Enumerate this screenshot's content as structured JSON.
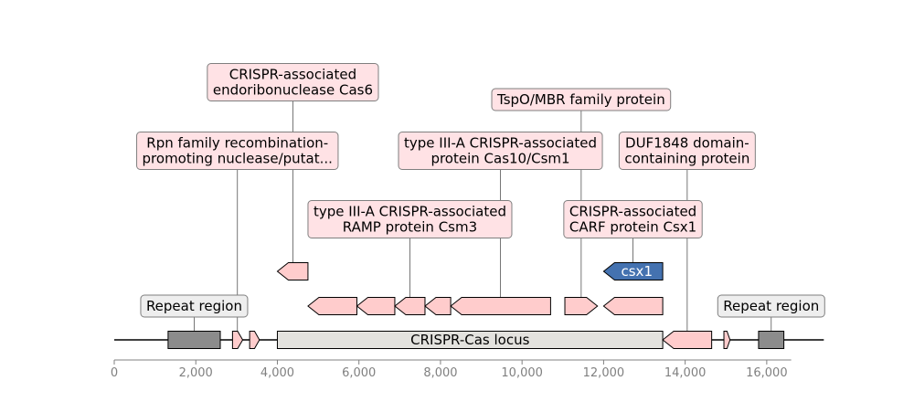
{
  "axis": {
    "ticks": [
      {
        "value": 0,
        "label": "0"
      },
      {
        "value": 2000,
        "label": "2,000"
      },
      {
        "value": 4000,
        "label": "4,000"
      },
      {
        "value": 6000,
        "label": "6,000"
      },
      {
        "value": 8000,
        "label": "8,000"
      },
      {
        "value": 10000,
        "label": "10,000"
      },
      {
        "value": 12000,
        "label": "12,000"
      },
      {
        "value": 14000,
        "label": "14,000"
      },
      {
        "value": 16000,
        "label": "16,000"
      }
    ],
    "xlim": [
      0,
      17400
    ]
  },
  "colors": {
    "repeat": "#8c8c8c",
    "locus": "#e3e2de",
    "gene": "#ffcccc",
    "csx1": "#4472b0",
    "label_pink": "#ffe2e5",
    "label_grey": "#eeeeee",
    "border": "#7f7f7f"
  },
  "features": [
    {
      "id": "repeat-region-left",
      "kind": "repeat",
      "start": 1320,
      "end": 2600,
      "track": 0
    },
    {
      "id": "gene-small-1",
      "kind": "gene",
      "start": 2900,
      "end": 3150,
      "strand": 1,
      "track": 0
    },
    {
      "id": "gene-small-2",
      "kind": "gene",
      "start": 3320,
      "end": 3560,
      "strand": 1,
      "track": 0
    },
    {
      "id": "crispr-cas-locus",
      "kind": "locus",
      "start": 4000,
      "end": 13450,
      "track": 0,
      "label": "CRISPR-Cas locus"
    },
    {
      "id": "gene-duf1848",
      "kind": "gene",
      "start": 13450,
      "end": 14650,
      "strand": -1,
      "track": 0
    },
    {
      "id": "gene-small-3",
      "kind": "gene",
      "start": 14950,
      "end": 15100,
      "strand": 1,
      "track": 0
    },
    {
      "id": "repeat-region-right",
      "kind": "repeat",
      "start": 15800,
      "end": 16420,
      "track": 0
    },
    {
      "id": "gene-csm-a",
      "kind": "gene",
      "start": 4750,
      "end": 5950,
      "strand": -1,
      "track": 1
    },
    {
      "id": "gene-csm-b",
      "kind": "gene",
      "start": 5950,
      "end": 6880,
      "strand": -1,
      "track": 1
    },
    {
      "id": "gene-csm3",
      "kind": "gene",
      "start": 6880,
      "end": 7620,
      "strand": -1,
      "track": 1
    },
    {
      "id": "gene-csm-c",
      "kind": "gene",
      "start": 7620,
      "end": 8250,
      "strand": -1,
      "track": 1
    },
    {
      "id": "gene-cas10",
      "kind": "gene",
      "start": 8250,
      "end": 10700,
      "strand": -1,
      "track": 1
    },
    {
      "id": "gene-tspo",
      "kind": "gene",
      "start": 11050,
      "end": 11850,
      "strand": 1,
      "track": 1
    },
    {
      "id": "gene-csx1-parent",
      "kind": "gene",
      "start": 12000,
      "end": 13450,
      "strand": -1,
      "track": 1
    },
    {
      "id": "gene-cas6",
      "kind": "gene",
      "start": 4000,
      "end": 4750,
      "strand": -1,
      "track": 2
    },
    {
      "id": "gene-csx1",
      "kind": "csx1",
      "start": 12000,
      "end": 13450,
      "strand": -1,
      "track": 2,
      "label": "csx1"
    }
  ],
  "labels": [
    {
      "id": "label-repeat-left",
      "lines": [
        "Repeat region"
      ],
      "anchor": 1960,
      "track": 0,
      "style": "grey",
      "row": 0
    },
    {
      "id": "label-repeat-right",
      "lines": [
        "Repeat region"
      ],
      "anchor": 16110,
      "track": 0,
      "style": "grey",
      "row": 0
    },
    {
      "id": "label-csm3",
      "lines": [
        "type III-A CRISPR-associated",
        "RAMP protein Csm3"
      ],
      "anchor": 7250,
      "track": 1,
      "style": "pink",
      "row": 1
    },
    {
      "id": "label-csx1",
      "lines": [
        "CRISPR-associated",
        "CARF protein Csx1"
      ],
      "anchor": 12720,
      "track": 2,
      "style": "pink",
      "row": 1
    },
    {
      "id": "label-rpn",
      "lines": [
        "Rpn family recombination-",
        "promoting nuclease/putat..."
      ],
      "anchor": 3020,
      "track": 0,
      "style": "pink",
      "row": 2
    },
    {
      "id": "label-cas10",
      "lines": [
        "type III-A CRISPR-associated",
        "protein Cas10/Csm1"
      ],
      "anchor": 9470,
      "track": 1,
      "style": "pink",
      "row": 2
    },
    {
      "id": "label-duf1848",
      "lines": [
        "DUF1848 domain-",
        "containing protein"
      ],
      "anchor": 14050,
      "track": 0,
      "style": "pink",
      "row": 2
    },
    {
      "id": "label-tspo",
      "lines": [
        "TspO/MBR family protein"
      ],
      "anchor": 11450,
      "track": 1,
      "style": "pink",
      "row": 3
    },
    {
      "id": "label-cas6",
      "lines": [
        "CRISPR-associated",
        "endoribonuclease Cas6"
      ],
      "anchor": 4380,
      "track": 2,
      "style": "pink",
      "row": 4
    }
  ]
}
